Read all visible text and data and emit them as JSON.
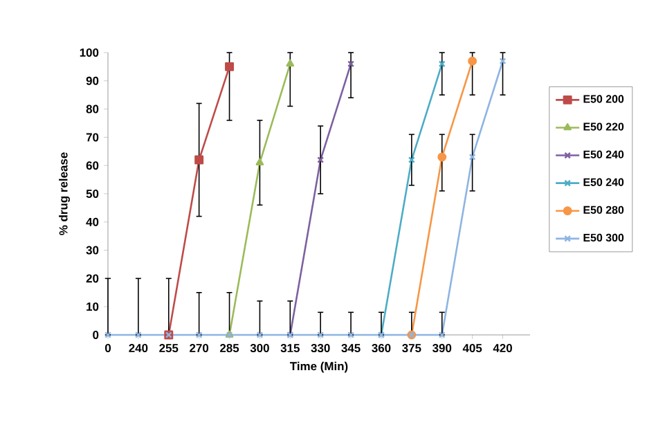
{
  "chart_data": {
    "type": "line",
    "xlabel": "Time (Min)",
    "ylabel": "% drug release",
    "categories": [
      "0",
      "240",
      "255",
      "270",
      "285",
      "300",
      "315",
      "330",
      "345",
      "360",
      "375",
      "390",
      "405",
      "420"
    ],
    "ylim": [
      0,
      100
    ],
    "yticks": [
      0,
      10,
      20,
      30,
      40,
      50,
      60,
      70,
      80,
      90,
      100
    ],
    "grid": false,
    "legend": "right",
    "series": [
      {
        "name": "E50 200",
        "color": "#be4b48",
        "marker": "square",
        "values": [
          null,
          null,
          0,
          62,
          95,
          null,
          null,
          null,
          null,
          null,
          null,
          null,
          null,
          null
        ],
        "errors": [
          null,
          null,
          null,
          [
            42,
            82
          ],
          [
            76,
            100
          ],
          null,
          null,
          null,
          null,
          null,
          null,
          null,
          null,
          null
        ]
      },
      {
        "name": "E50 220",
        "color": "#9bbb59",
        "marker": "triangle",
        "values": [
          null,
          null,
          null,
          null,
          0,
          61,
          96,
          null,
          null,
          null,
          null,
          null,
          null,
          null
        ],
        "errors": [
          null,
          null,
          null,
          null,
          null,
          [
            46,
            76
          ],
          [
            81,
            100
          ],
          null,
          null,
          null,
          null,
          null,
          null,
          null
        ]
      },
      {
        "name": "E50 240",
        "color": "#7d60a0",
        "marker": "cross",
        "values": [
          null,
          null,
          null,
          null,
          null,
          null,
          0,
          62,
          96,
          null,
          null,
          null,
          null,
          null
        ],
        "errors": [
          null,
          null,
          null,
          null,
          null,
          null,
          null,
          [
            50,
            74
          ],
          [
            84,
            100
          ],
          null,
          null,
          null,
          null,
          null
        ]
      },
      {
        "name": "E50 240",
        "color": "#4bacc6",
        "marker": "cross",
        "values": [
          null,
          null,
          null,
          null,
          null,
          null,
          null,
          null,
          null,
          0,
          62,
          96,
          null,
          null
        ],
        "errors": [
          null,
          null,
          null,
          null,
          null,
          null,
          null,
          null,
          null,
          null,
          [
            53,
            71
          ],
          [
            85,
            100
          ],
          null,
          null
        ]
      },
      {
        "name": "E50 280",
        "color": "#f79646",
        "marker": "circle",
        "values": [
          null,
          null,
          null,
          null,
          null,
          null,
          null,
          null,
          null,
          null,
          0,
          63,
          97,
          null
        ],
        "errors": [
          null,
          null,
          null,
          null,
          null,
          null,
          null,
          null,
          null,
          null,
          null,
          [
            51,
            71
          ],
          [
            85,
            100
          ],
          null
        ]
      },
      {
        "name": "E50 300",
        "color": "#8eb4e3",
        "marker": "cross",
        "values": [
          0,
          0,
          0,
          0,
          0,
          0,
          0,
          0,
          0,
          0,
          0,
          0,
          63,
          97
        ],
        "errors": [
          [
            0,
            20
          ],
          [
            0,
            20
          ],
          [
            0,
            20
          ],
          [
            0,
            15
          ],
          [
            0,
            15
          ],
          [
            0,
            12
          ],
          [
            0,
            12
          ],
          [
            0,
            8
          ],
          [
            0,
            8
          ],
          [
            0,
            8
          ],
          [
            0,
            8
          ],
          [
            0,
            8
          ],
          [
            51,
            71
          ],
          [
            85,
            100
          ]
        ]
      }
    ]
  }
}
